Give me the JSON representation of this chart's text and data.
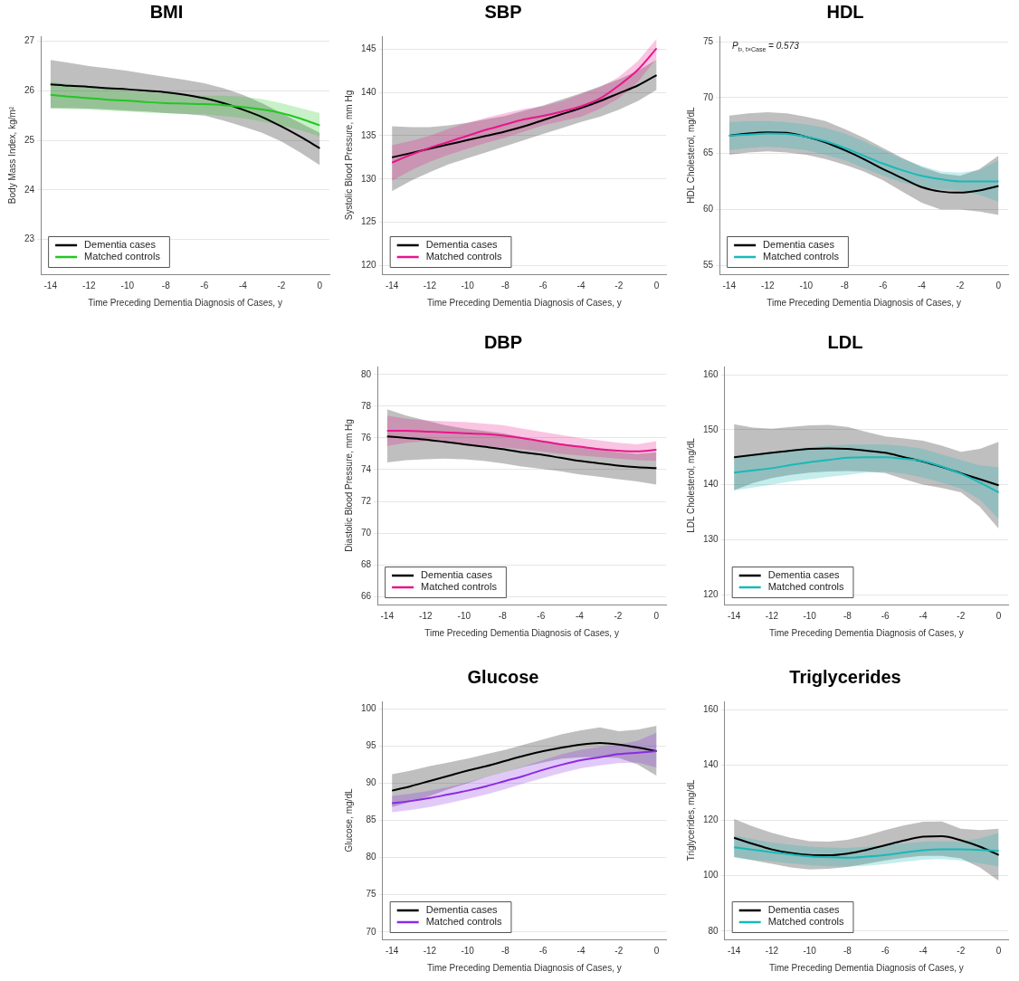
{
  "chart_data": [
    {
      "type": "line",
      "title": "BMI",
      "xlabel": "Time Preceding Dementia Diagnosis of Cases, y",
      "ylabel": "Body Mass Index, kg/m²",
      "x": [
        -14,
        -13,
        -12,
        -11,
        -10,
        -9,
        -8,
        -7,
        -6,
        -5,
        -4,
        -3,
        -2,
        -1,
        0
      ],
      "xlim": [
        -14.5,
        0.5
      ],
      "xticks": [
        -14,
        -12,
        -10,
        -8,
        -6,
        -4,
        -2,
        0
      ],
      "ylim": [
        22.3,
        27.1
      ],
      "yticks": [
        23,
        24,
        25,
        26,
        27
      ],
      "grid": "y",
      "legend": "bottom left",
      "series": [
        {
          "name": "Dementia cases",
          "color": "#000000",
          "values": [
            26.13,
            26.1,
            26.08,
            26.05,
            26.03,
            26.0,
            25.97,
            25.92,
            25.85,
            25.75,
            25.62,
            25.47,
            25.28,
            25.07,
            24.84
          ],
          "upper": [
            26.62,
            26.56,
            26.5,
            26.45,
            26.4,
            26.34,
            26.28,
            26.22,
            26.15,
            26.05,
            25.92,
            25.75,
            25.55,
            25.35,
            25.15
          ],
          "lower": [
            25.65,
            25.65,
            25.64,
            25.62,
            25.6,
            25.58,
            25.55,
            25.53,
            25.5,
            25.4,
            25.28,
            25.15,
            24.98,
            24.75,
            24.5
          ]
        },
        {
          "name": "Matched controls",
          "color": "#22c722",
          "values": [
            25.92,
            25.88,
            25.85,
            25.82,
            25.8,
            25.77,
            25.75,
            25.74,
            25.73,
            25.71,
            25.67,
            25.62,
            25.55,
            25.44,
            25.3
          ],
          "upper": [
            26.18,
            26.13,
            26.08,
            26.04,
            26.0,
            25.97,
            25.95,
            25.92,
            25.9,
            25.9,
            25.88,
            25.83,
            25.75,
            25.65,
            25.55
          ],
          "lower": [
            25.65,
            25.63,
            25.62,
            25.6,
            25.58,
            25.56,
            25.55,
            25.53,
            25.52,
            25.49,
            25.45,
            25.38,
            25.3,
            25.2,
            25.08
          ]
        }
      ]
    },
    {
      "type": "line",
      "title": "SBP",
      "xlabel": "Time Preceding Dementia Diagnosis of Cases, y",
      "ylabel": "Systolic Blood Pressure, mm Hg",
      "x": [
        -14,
        -13,
        -12,
        -11,
        -10,
        -9,
        -8,
        -7,
        -6,
        -5,
        -4,
        -3,
        -2,
        -1,
        0
      ],
      "xlim": [
        -14.5,
        0.5
      ],
      "xticks": [
        -14,
        -12,
        -10,
        -8,
        -6,
        -4,
        -2,
        0
      ],
      "ylim": [
        119,
        146.5
      ],
      "yticks": [
        120,
        125,
        130,
        135,
        140,
        145
      ],
      "grid": "y",
      "legend": "bottom left",
      "series": [
        {
          "name": "Dementia cases",
          "color": "#000000",
          "values": [
            132.5,
            133.0,
            133.5,
            134.0,
            134.5,
            135.0,
            135.5,
            136.1,
            136.8,
            137.5,
            138.2,
            139.0,
            139.9,
            140.8,
            142.0
          ],
          "upper": [
            136.1,
            136.0,
            136.0,
            136.2,
            136.5,
            136.9,
            137.3,
            137.9,
            138.5,
            139.2,
            139.9,
            140.7,
            141.5,
            142.5,
            143.8
          ],
          "lower": [
            128.6,
            129.8,
            130.8,
            131.7,
            132.4,
            133.1,
            133.8,
            134.5,
            135.2,
            135.9,
            136.6,
            137.2,
            138.0,
            139.0,
            140.3
          ]
        },
        {
          "name": "Matched controls",
          "color": "#e8168c",
          "values": [
            131.9,
            132.8,
            133.6,
            134.3,
            135.0,
            135.7,
            136.3,
            136.9,
            137.3,
            137.8,
            138.4,
            139.3,
            140.8,
            142.6,
            145.1
          ],
          "upper": [
            133.9,
            134.4,
            135.0,
            135.8,
            136.5,
            137.1,
            137.6,
            138.1,
            138.4,
            139.0,
            139.8,
            140.6,
            141.8,
            143.6,
            146.2
          ],
          "lower": [
            129.8,
            131.0,
            132.0,
            132.8,
            133.5,
            134.2,
            134.8,
            135.5,
            136.2,
            136.7,
            137.2,
            138.1,
            139.3,
            141.2,
            143.9
          ]
        }
      ]
    },
    {
      "type": "line",
      "title": "HDL",
      "xlabel": "Time Preceding Dementia Diagnosis of Cases, y",
      "ylabel": "HDL Cholesterol, mg/dL",
      "annotations": [
        "P$_{t², t×Case}$ = 0.573"
      ],
      "x": [
        -14,
        -13,
        -12,
        -11,
        -10,
        -9,
        -8,
        -7,
        -6,
        -5,
        -4,
        -3,
        -2,
        -1,
        0
      ],
      "xlim": [
        -14.5,
        0.5
      ],
      "xticks": [
        -14,
        -12,
        -10,
        -8,
        -6,
        -4,
        -2,
        0
      ],
      "ylim": [
        54.2,
        75.5
      ],
      "yticks": [
        55,
        60,
        65,
        70,
        75
      ],
      "grid": "y",
      "legend": "bottom left",
      "series": [
        {
          "name": "Dementia cases",
          "color": "#000000",
          "values": [
            66.6,
            66.8,
            66.9,
            66.85,
            66.5,
            66.0,
            65.3,
            64.5,
            63.6,
            62.8,
            62.0,
            61.6,
            61.5,
            61.7,
            62.1
          ],
          "upper": [
            68.4,
            68.6,
            68.7,
            68.6,
            68.3,
            67.9,
            67.2,
            66.4,
            65.5,
            64.6,
            63.8,
            63.2,
            63.0,
            63.6,
            64.8
          ],
          "lower": [
            64.9,
            65.1,
            65.2,
            65.1,
            64.9,
            64.5,
            64.0,
            63.4,
            62.6,
            61.6,
            60.6,
            60.0,
            60.0,
            59.8,
            59.5
          ]
        },
        {
          "name": "Matched controls",
          "color": "#19b9b9",
          "values": [
            66.6,
            66.7,
            66.8,
            66.75,
            66.5,
            66.1,
            65.5,
            64.8,
            64.1,
            63.5,
            63.0,
            62.7,
            62.5,
            62.5,
            62.5
          ],
          "upper": [
            67.8,
            67.9,
            67.9,
            67.8,
            67.6,
            67.3,
            66.8,
            66.1,
            65.3,
            64.5,
            63.9,
            63.4,
            63.3,
            63.5,
            64.4
          ],
          "lower": [
            65.3,
            65.5,
            65.6,
            65.5,
            65.3,
            64.9,
            64.4,
            63.7,
            63.0,
            62.4,
            62.0,
            61.8,
            61.7,
            61.3,
            60.7
          ]
        }
      ]
    },
    {
      "type": "line",
      "title": "DBP",
      "xlabel": "Time Preceding Dementia Diagnosis of Cases, y",
      "ylabel": "Diastolic Blood Pressure, mm Hg",
      "x": [
        -14,
        -13,
        -12,
        -11,
        -10,
        -9,
        -8,
        -7,
        -6,
        -5,
        -4,
        -3,
        -2,
        -1,
        0
      ],
      "xlim": [
        -14.5,
        0.5
      ],
      "xticks": [
        -14,
        -12,
        -10,
        -8,
        -6,
        -4,
        -2,
        0
      ],
      "ylim": [
        65.5,
        80.5
      ],
      "yticks": [
        66,
        68,
        70,
        72,
        74,
        76,
        78,
        80
      ],
      "grid": "y",
      "legend": "bottom left",
      "series": [
        {
          "name": "Dementia cases",
          "color": "#000000",
          "values": [
            76.1,
            76.0,
            75.9,
            75.75,
            75.6,
            75.45,
            75.3,
            75.1,
            74.95,
            74.75,
            74.55,
            74.4,
            74.25,
            74.15,
            74.1
          ],
          "upper": [
            77.8,
            77.4,
            77.1,
            76.8,
            76.6,
            76.45,
            76.3,
            76.05,
            75.8,
            75.65,
            75.5,
            75.3,
            75.1,
            75.0,
            75.1
          ],
          "lower": [
            74.45,
            74.6,
            74.65,
            74.7,
            74.65,
            74.55,
            74.4,
            74.2,
            74.05,
            73.9,
            73.7,
            73.55,
            73.4,
            73.25,
            73.05
          ]
        },
        {
          "name": "Matched controls",
          "color": "#e8168c",
          "values": [
            76.45,
            76.45,
            76.4,
            76.35,
            76.3,
            76.25,
            76.15,
            76.0,
            75.8,
            75.6,
            75.45,
            75.3,
            75.2,
            75.15,
            75.25
          ],
          "upper": [
            77.4,
            77.2,
            77.1,
            77.05,
            77.0,
            76.9,
            76.8,
            76.6,
            76.4,
            76.2,
            76.0,
            75.85,
            75.7,
            75.6,
            75.8
          ],
          "lower": [
            75.5,
            75.7,
            75.8,
            75.7,
            75.6,
            75.5,
            75.4,
            75.3,
            75.15,
            75.0,
            74.9,
            74.8,
            74.7,
            74.6,
            74.55
          ]
        }
      ]
    },
    {
      "type": "line",
      "title": "LDL",
      "xlabel": "Time Preceding Dementia Diagnosis of Cases, y",
      "ylabel": "LDL Cholesterol, mg/dL",
      "x": [
        -14,
        -13,
        -12,
        -11,
        -10,
        -9,
        -8,
        -7,
        -6,
        -5,
        -4,
        -3,
        -2,
        -1,
        0
      ],
      "xlim": [
        -14.5,
        0.5
      ],
      "xticks": [
        -14,
        -12,
        -10,
        -8,
        -6,
        -4,
        -2,
        0
      ],
      "ylim": [
        118.2,
        161.5
      ],
      "yticks": [
        120,
        130,
        140,
        150,
        160
      ],
      "grid": "y",
      "legend": "bottom left",
      "series": [
        {
          "name": "Dementia cases",
          "color": "#000000",
          "values": [
            145.0,
            145.4,
            145.8,
            146.2,
            146.5,
            146.6,
            146.5,
            146.2,
            145.8,
            145.0,
            144.2,
            143.2,
            142.1,
            141.0,
            139.9
          ],
          "upper": [
            151.0,
            150.4,
            150.2,
            150.5,
            150.8,
            150.9,
            150.5,
            149.6,
            148.8,
            148.4,
            148.0,
            147.1,
            146.0,
            146.5,
            147.8
          ],
          "lower": [
            139.0,
            140.3,
            141.2,
            141.8,
            142.2,
            142.4,
            142.5,
            142.4,
            142.1,
            141.0,
            140.0,
            139.4,
            138.6,
            136.0,
            132.0
          ]
        },
        {
          "name": "Matched controls",
          "color": "#19b9b9",
          "values": [
            142.2,
            142.6,
            143.0,
            143.6,
            144.1,
            144.5,
            144.9,
            145.0,
            145.0,
            144.7,
            144.3,
            143.3,
            142.0,
            140.4,
            138.6
          ],
          "upper": [
            145.0,
            145.5,
            146.0,
            146.4,
            146.8,
            147.1,
            147.3,
            147.3,
            147.3,
            147.0,
            146.5,
            145.5,
            144.5,
            143.5,
            143.2
          ],
          "lower": [
            139.0,
            139.5,
            140.0,
            140.6,
            141.0,
            141.4,
            141.8,
            142.2,
            142.4,
            142.0,
            141.3,
            140.4,
            139.3,
            137.3,
            133.8
          ]
        }
      ]
    },
    {
      "type": "line",
      "title": "Glucose",
      "xlabel": "Time Preceding Dementia Diagnosis of Cases, y",
      "ylabel": "Glucose, mg/dL",
      "x": [
        -14,
        -13,
        -12,
        -11,
        -10,
        -9,
        -8,
        -7,
        -6,
        -5,
        -4,
        -3,
        -2,
        -1,
        0
      ],
      "xlim": [
        -14.5,
        0.5
      ],
      "xticks": [
        -14,
        -12,
        -10,
        -8,
        -6,
        -4,
        -2,
        0
      ],
      "ylim": [
        69,
        101
      ],
      "yticks": [
        70,
        75,
        80,
        85,
        90,
        95,
        100
      ],
      "grid": "y",
      "legend": "bottom left",
      "series": [
        {
          "name": "Dementia cases",
          "color": "#000000",
          "values": [
            89.0,
            89.6,
            90.3,
            91.0,
            91.7,
            92.3,
            93.0,
            93.7,
            94.3,
            94.8,
            95.2,
            95.4,
            95.2,
            94.8,
            94.3
          ],
          "upper": [
            91.2,
            91.7,
            92.3,
            92.8,
            93.3,
            93.9,
            94.5,
            95.2,
            95.9,
            96.6,
            97.1,
            97.5,
            97.0,
            97.2,
            97.7
          ],
          "lower": [
            86.8,
            87.5,
            88.3,
            89.2,
            90.0,
            90.8,
            91.5,
            92.2,
            92.8,
            93.3,
            93.5,
            93.5,
            93.4,
            92.5,
            91.0
          ]
        },
        {
          "name": "Matched controls",
          "color": "#8a2be2",
          "values": [
            87.3,
            87.6,
            88.0,
            88.5,
            89.0,
            89.6,
            90.3,
            91.0,
            91.8,
            92.5,
            93.1,
            93.5,
            93.9,
            94.1,
            94.3
          ],
          "upper": [
            88.3,
            88.6,
            89.0,
            89.5,
            90.1,
            90.8,
            91.5,
            92.3,
            93.1,
            93.9,
            94.5,
            94.9,
            95.2,
            95.7,
            96.8
          ],
          "lower": [
            86.1,
            86.4,
            86.8,
            87.3,
            87.9,
            88.5,
            89.2,
            90.0,
            90.7,
            91.4,
            92.0,
            92.4,
            92.7,
            92.8,
            92.1
          ]
        }
      ]
    },
    {
      "type": "line",
      "title": "Triglycerides",
      "xlabel": "Time Preceding Dementia Diagnosis of Cases, y",
      "ylabel": "Triglycerides, mg/dL",
      "x": [
        -14,
        -13,
        -12,
        -11,
        -10,
        -9,
        -8,
        -7,
        -6,
        -5,
        -4,
        -3,
        -2,
        -1,
        0
      ],
      "xlim": [
        -14.5,
        0.5
      ],
      "xticks": [
        -14,
        -12,
        -10,
        -8,
        -6,
        -4,
        -2,
        0
      ],
      "ylim": [
        77,
        163
      ],
      "yticks": [
        80,
        100,
        120,
        140,
        160
      ],
      "grid": "y",
      "legend": "bottom left",
      "series": [
        {
          "name": "Dementia cases",
          "color": "#000000",
          "values": [
            113.7,
            111.5,
            109.5,
            108.2,
            107.5,
            107.4,
            108.0,
            109.3,
            111.0,
            112.7,
            114.1,
            114.3,
            112.8,
            110.5,
            107.5
          ],
          "upper": [
            120.5,
            117.8,
            115.5,
            113.7,
            112.5,
            112.3,
            113.0,
            114.5,
            116.5,
            118.2,
            119.5,
            119.6,
            117.0,
            116.5,
            117.0
          ],
          "lower": [
            106.8,
            105.5,
            104.3,
            103.0,
            102.3,
            102.5,
            103.2,
            104.3,
            105.5,
            106.5,
            107.2,
            107.2,
            106.3,
            103.0,
            98.2
          ]
        },
        {
          "name": "Matched controls",
          "color": "#19b9b9",
          "values": [
            110.3,
            109.4,
            108.5,
            107.7,
            107.0,
            106.7,
            106.5,
            106.9,
            107.5,
            108.4,
            109.2,
            109.5,
            109.5,
            109.3,
            109.0
          ],
          "upper": [
            114.5,
            113.2,
            112.0,
            111.2,
            110.5,
            110.2,
            110.0,
            110.4,
            111.0,
            111.7,
            112.3,
            112.5,
            112.5,
            113.5,
            115.5
          ],
          "lower": [
            106.5,
            105.8,
            105.2,
            104.5,
            103.8,
            103.4,
            103.3,
            103.6,
            104.2,
            105.0,
            105.8,
            106.0,
            105.5,
            104.5,
            103.3
          ]
        }
      ]
    }
  ]
}
